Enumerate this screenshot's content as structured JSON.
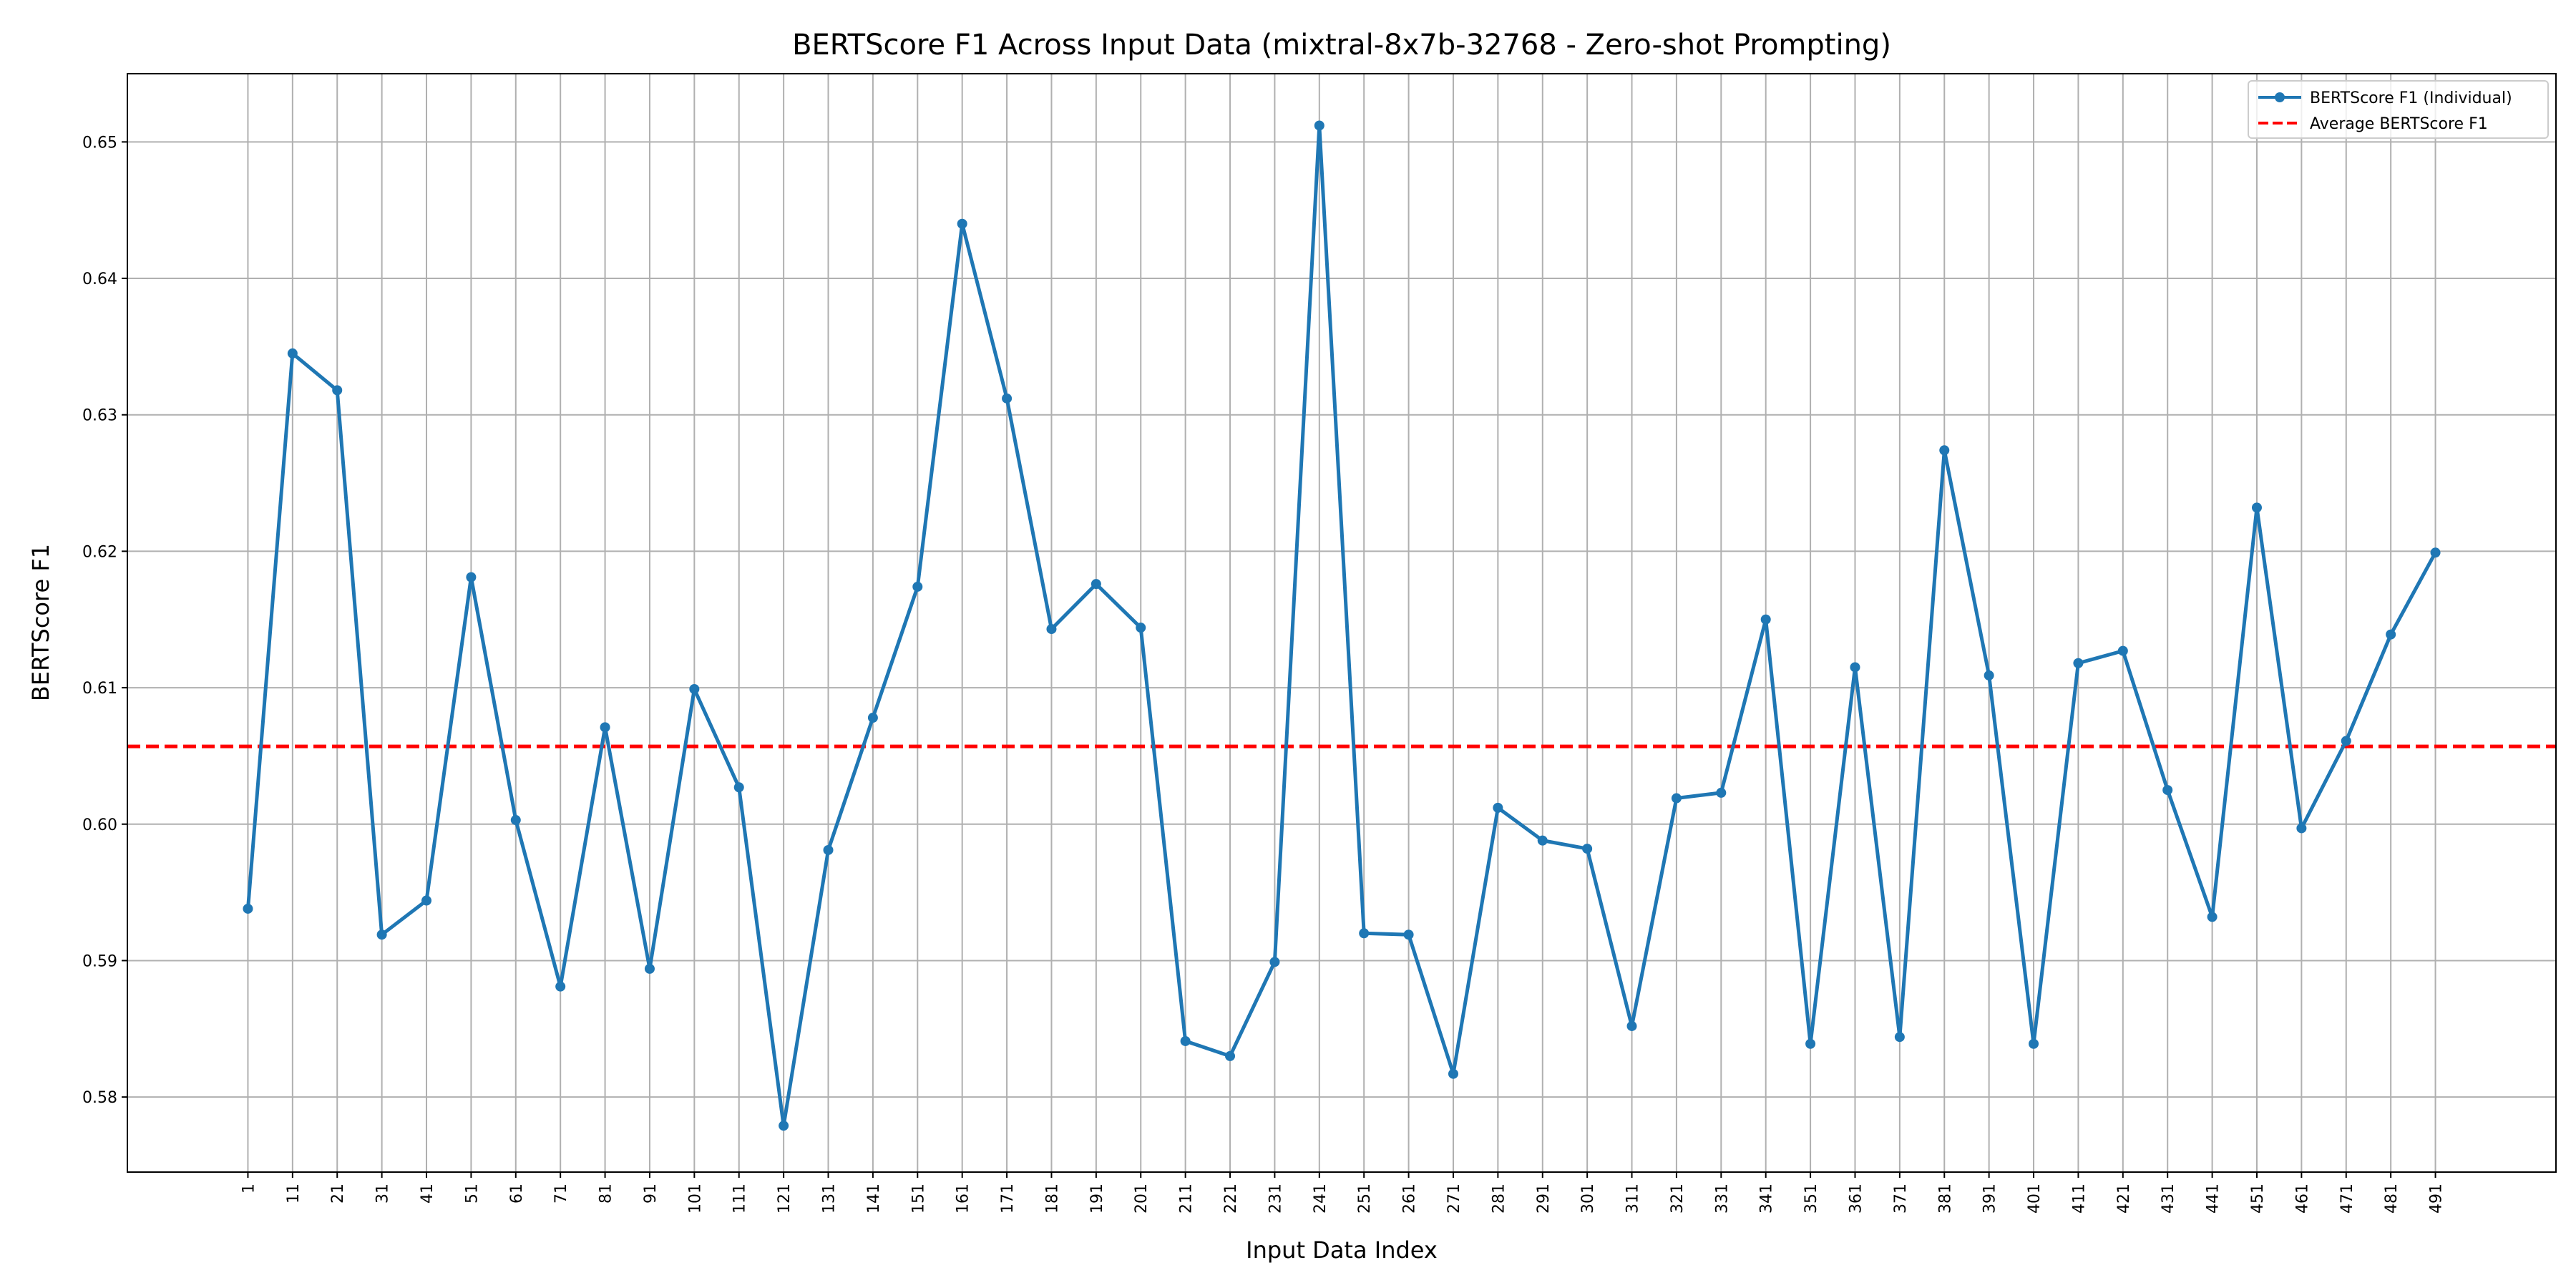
{
  "chart_data": {
    "type": "line",
    "title": "BERTScore F1 Across Input Data (mixtral-8x7b-32768 - Zero-shot Prompting)",
    "xlabel": "Input Data Index",
    "ylabel": "BERTScore F1",
    "x": [
      1,
      11,
      21,
      31,
      41,
      51,
      61,
      71,
      81,
      91,
      101,
      111,
      121,
      131,
      141,
      151,
      161,
      171,
      181,
      191,
      201,
      211,
      221,
      231,
      241,
      251,
      261,
      271,
      281,
      291,
      301,
      311,
      321,
      331,
      341,
      351,
      361,
      371,
      381,
      391,
      401,
      411,
      421,
      431,
      441,
      451,
      461,
      471,
      481,
      491
    ],
    "xlim": [
      -26,
      518
    ],
    "ylim": [
      0.5745,
      0.655
    ],
    "yticks": [
      0.58,
      0.59,
      0.6,
      0.61,
      0.62,
      0.63,
      0.64,
      0.65
    ],
    "ytick_labels": [
      "0.58",
      "0.59",
      "0.60",
      "0.61",
      "0.62",
      "0.63",
      "0.64",
      "0.65"
    ],
    "grid": true,
    "legend_position": "top-right",
    "series": [
      {
        "name": "BERTScore F1 (Individual)",
        "style": "line-with-markers",
        "color": "#1f77b4",
        "values": [
          0.5938,
          0.6345,
          0.6318,
          0.5919,
          0.5944,
          0.6181,
          0.6003,
          0.5881,
          0.6071,
          0.5894,
          0.6099,
          0.6027,
          0.5779,
          0.5981,
          0.6078,
          0.6174,
          0.644,
          0.6312,
          0.6143,
          0.6176,
          0.6144,
          0.5841,
          0.583,
          0.5899,
          0.6512,
          0.592,
          0.5919,
          0.5817,
          0.6012,
          0.5988,
          0.5982,
          0.5852,
          0.6019,
          0.6023,
          0.615,
          0.5839,
          0.6115,
          0.5844,
          0.6274,
          0.6109,
          0.5839,
          0.6118,
          0.6127,
          0.6025,
          0.5932,
          0.6232,
          0.5997,
          0.6061,
          0.6139,
          0.6199
        ]
      },
      {
        "name": "Average BERTScore F1",
        "style": "dashed-horizontal",
        "color": "#ff0000",
        "value": 0.6057
      }
    ]
  }
}
